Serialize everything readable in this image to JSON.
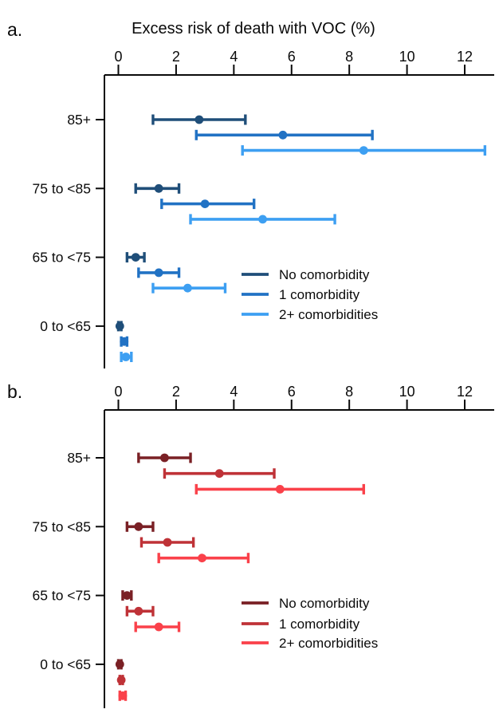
{
  "figure_title": "Excess risk of death with VOC (%)",
  "chart_data": [
    {
      "type": "scatter",
      "panel_label": "a.",
      "title": "Excess risk of death with VOC (%)",
      "xlabel": "",
      "ylabel": "",
      "x_axis_position": "top",
      "xlim": [
        -0.5,
        13
      ],
      "xticks": [
        0,
        2,
        4,
        6,
        8,
        10,
        12
      ],
      "grid": false,
      "legend_position": "right-middle",
      "categories": [
        "85+",
        "75 to <85",
        "65 to <75",
        "0 to <65"
      ],
      "series": [
        {
          "name": "No comorbidity",
          "color": "#1f4e79",
          "points": [
            {
              "category": "85+",
              "lo": 1.2,
              "mid": 2.8,
              "hi": 4.4
            },
            {
              "category": "75 to <85",
              "lo": 0.6,
              "mid": 1.4,
              "hi": 2.1
            },
            {
              "category": "65 to <75",
              "lo": 0.3,
              "mid": 0.6,
              "hi": 0.9
            },
            {
              "category": "0 to <65",
              "lo": 0.0,
              "mid": 0.05,
              "hi": 0.1
            }
          ]
        },
        {
          "name": "1 comorbidity",
          "color": "#2172c4",
          "points": [
            {
              "category": "85+",
              "lo": 2.7,
              "mid": 5.7,
              "hi": 8.8
            },
            {
              "category": "75 to <85",
              "lo": 1.5,
              "mid": 3.0,
              "hi": 4.7
            },
            {
              "category": "65 to <75",
              "lo": 0.7,
              "mid": 1.4,
              "hi": 2.1
            },
            {
              "category": "0 to <65",
              "lo": 0.1,
              "mid": 0.2,
              "hi": 0.3
            }
          ]
        },
        {
          "name": "2+ comorbidities",
          "color": "#3d9ff2",
          "points": [
            {
              "category": "85+",
              "lo": 4.3,
              "mid": 8.5,
              "hi": 12.7
            },
            {
              "category": "75 to <85",
              "lo": 2.5,
              "mid": 5.0,
              "hi": 7.5
            },
            {
              "category": "65 to <75",
              "lo": 1.2,
              "mid": 2.4,
              "hi": 3.7
            },
            {
              "category": "0 to <65",
              "lo": 0.1,
              "mid": 0.26,
              "hi": 0.45
            }
          ]
        }
      ]
    },
    {
      "type": "scatter",
      "panel_label": "b.",
      "title": "",
      "xlabel": "",
      "ylabel": "",
      "x_axis_position": "top",
      "xlim": [
        -0.5,
        13
      ],
      "xticks": [
        0,
        2,
        4,
        6,
        8,
        10,
        12
      ],
      "grid": false,
      "legend_position": "right-middle",
      "categories": [
        "85+",
        "75 to <85",
        "65 to <75",
        "0 to <65"
      ],
      "series": [
        {
          "name": "No comorbidity",
          "color": "#7a2025",
          "points": [
            {
              "category": "85+",
              "lo": 0.7,
              "mid": 1.6,
              "hi": 2.5
            },
            {
              "category": "75 to <85",
              "lo": 0.3,
              "mid": 0.7,
              "hi": 1.2
            },
            {
              "category": "65 to <75",
              "lo": 0.15,
              "mid": 0.3,
              "hi": 0.45
            },
            {
              "category": "0 to <65",
              "lo": 0.0,
              "mid": 0.05,
              "hi": 0.1
            }
          ]
        },
        {
          "name": "1 comorbidity",
          "color": "#bf3237",
          "points": [
            {
              "category": "85+",
              "lo": 1.6,
              "mid": 3.5,
              "hi": 5.4
            },
            {
              "category": "75 to <85",
              "lo": 0.8,
              "mid": 1.7,
              "hi": 2.6
            },
            {
              "category": "65 to <75",
              "lo": 0.3,
              "mid": 0.7,
              "hi": 1.2
            },
            {
              "category": "0 to <65",
              "lo": 0.05,
              "mid": 0.1,
              "hi": 0.15
            }
          ]
        },
        {
          "name": "2+ comorbidities",
          "color": "#fa414a",
          "points": [
            {
              "category": "85+",
              "lo": 2.7,
              "mid": 5.6,
              "hi": 8.5
            },
            {
              "category": "75 to <85",
              "lo": 1.4,
              "mid": 2.9,
              "hi": 4.5
            },
            {
              "category": "65 to <75",
              "lo": 0.6,
              "mid": 1.4,
              "hi": 2.1
            },
            {
              "category": "0 to <65",
              "lo": 0.05,
              "mid": 0.15,
              "hi": 0.25
            }
          ]
        }
      ]
    }
  ]
}
